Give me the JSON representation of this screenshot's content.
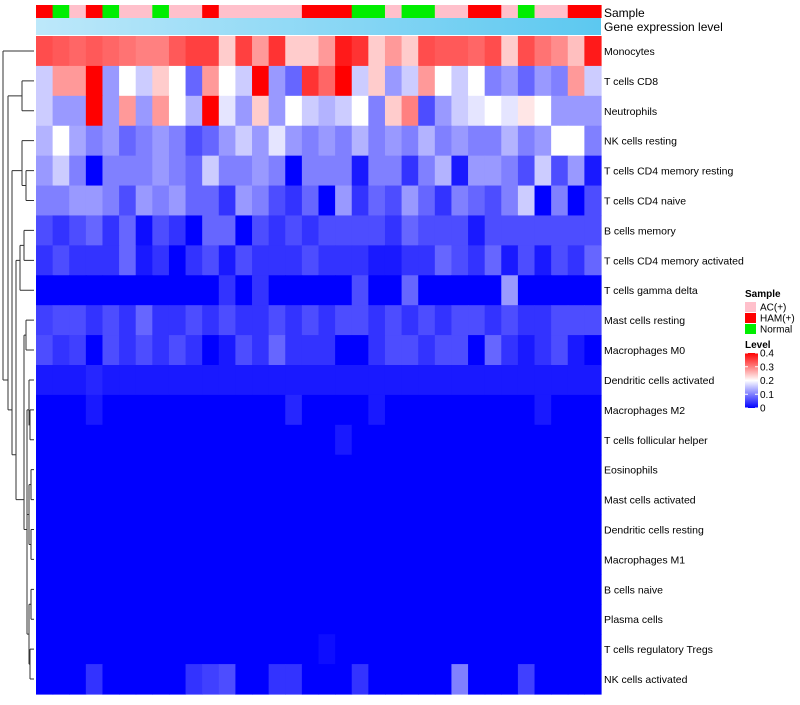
{
  "chart_data": {
    "type": "heatmap",
    "title": "",
    "annotations": {
      "sample_label": "Sample",
      "expression_label": "Gene expression level",
      "sample_groups": [
        "HAM(+)",
        "Normal",
        "AC(+)",
        "HAM(+)",
        "Normal",
        "AC(+)",
        "AC(+)",
        "Normal",
        "AC(+)",
        "AC(+)",
        "HAM(+)",
        "AC(+)",
        "AC(+)",
        "AC(+)",
        "AC(+)",
        "AC(+)",
        "HAM(+)",
        "HAM(+)",
        "HAM(+)",
        "Normal",
        "Normal",
        "AC(+)",
        "Normal",
        "Normal",
        "AC(+)",
        "AC(+)",
        "HAM(+)",
        "HAM(+)",
        "AC(+)",
        "Normal",
        "AC(+)",
        "AC(+)",
        "HAM(+)",
        "HAM(+)"
      ]
    },
    "rows": [
      "Monocytes",
      "T cells CD8",
      "Neutrophils",
      "NK cells resting",
      "T cells CD4 memory resting",
      "T cells CD4 naive",
      "B cells memory",
      "T cells CD4 memory activated",
      "T cells gamma delta",
      "Mast cells resting",
      "Macrophages M0",
      "Dendritic cells activated",
      "Macrophages M2",
      "T cells follicular helper",
      "Eosinophils",
      "Mast cells activated",
      "Dendritic cells resting",
      "Macrophages M1",
      "B cells naive",
      "Plasma cells",
      "T cells regulatory  Tregs",
      "NK cells activated"
    ],
    "values": [
      [
        0.34,
        0.33,
        0.32,
        0.33,
        0.32,
        0.31,
        0.3,
        0.3,
        0.33,
        0.35,
        0.35,
        0.24,
        0.35,
        0.28,
        0.36,
        0.24,
        0.24,
        0.28,
        0.38,
        0.36,
        0.24,
        0.28,
        0.24,
        0.34,
        0.33,
        0.33,
        0.32,
        0.34,
        0.24,
        0.34,
        0.31,
        0.29,
        0.25,
        0.38
      ],
      [
        0.16,
        0.28,
        0.28,
        0.4,
        0.12,
        0.2,
        0.16,
        0.24,
        0.2,
        0.08,
        0.28,
        0.2,
        0.16,
        0.4,
        0.12,
        0.08,
        0.36,
        0.32,
        0.4,
        0.16,
        0.24,
        0.12,
        0.16,
        0.28,
        0.2,
        0.16,
        0.2,
        0.1,
        0.12,
        0.08,
        0.12,
        0.1,
        0.28,
        0.16
      ],
      [
        0.16,
        0.12,
        0.12,
        0.4,
        0.12,
        0.28,
        0.12,
        0.28,
        0.2,
        0.14,
        0.4,
        0.18,
        0.12,
        0.24,
        0.12,
        0.2,
        0.16,
        0.14,
        0.16,
        0.2,
        0.1,
        0.24,
        0.3,
        0.06,
        0.12,
        0.16,
        0.18,
        0.2,
        0.18,
        0.22,
        0.2,
        0.12,
        0.12,
        0.12
      ],
      [
        0.14,
        0.2,
        0.13,
        0.1,
        0.12,
        0.08,
        0.1,
        0.12,
        0.1,
        0.06,
        0.08,
        0.12,
        0.16,
        0.12,
        0.18,
        0.12,
        0.1,
        0.12,
        0.1,
        0.14,
        0.1,
        0.12,
        0.1,
        0.14,
        0.1,
        0.12,
        0.1,
        0.1,
        0.14,
        0.1,
        0.12,
        0.2,
        0.2,
        0.1
      ],
      [
        0.12,
        0.16,
        0.1,
        0.0,
        0.1,
        0.1,
        0.1,
        0.12,
        0.1,
        0.08,
        0.16,
        0.1,
        0.1,
        0.12,
        0.1,
        0.0,
        0.1,
        0.1,
        0.1,
        0.02,
        0.1,
        0.1,
        0.04,
        0.1,
        0.14,
        0.02,
        0.12,
        0.12,
        0.1,
        0.06,
        0.16,
        0.06,
        0.12,
        0.02
      ],
      [
        0.1,
        0.1,
        0.12,
        0.12,
        0.1,
        0.06,
        0.12,
        0.1,
        0.12,
        0.08,
        0.08,
        0.04,
        0.12,
        0.1,
        0.06,
        0.04,
        0.08,
        0.0,
        0.12,
        0.04,
        0.08,
        0.06,
        0.12,
        0.08,
        0.04,
        0.1,
        0.08,
        0.06,
        0.1,
        0.16,
        0.0,
        0.1,
        0.0,
        0.06
      ],
      [
        0.06,
        0.04,
        0.06,
        0.08,
        0.04,
        0.08,
        0.01,
        0.06,
        0.04,
        0.0,
        0.08,
        0.08,
        0.0,
        0.06,
        0.04,
        0.06,
        0.04,
        0.06,
        0.06,
        0.06,
        0.06,
        0.04,
        0.08,
        0.06,
        0.06,
        0.06,
        0.02,
        0.06,
        0.06,
        0.06,
        0.06,
        0.06,
        0.06,
        0.06
      ],
      [
        0.04,
        0.06,
        0.04,
        0.04,
        0.04,
        0.08,
        0.02,
        0.04,
        0.0,
        0.04,
        0.06,
        0.02,
        0.06,
        0.04,
        0.04,
        0.04,
        0.06,
        0.04,
        0.04,
        0.04,
        0.02,
        0.02,
        0.04,
        0.04,
        0.08,
        0.06,
        0.04,
        0.08,
        0.02,
        0.06,
        0.02,
        0.06,
        0.04,
        0.08
      ],
      [
        0.0,
        0.0,
        0.0,
        0.0,
        0.0,
        0.0,
        0.0,
        0.0,
        0.0,
        0.0,
        0.0,
        0.04,
        0.0,
        0.04,
        0.0,
        0.0,
        0.0,
        0.0,
        0.0,
        0.06,
        0.0,
        0.0,
        0.08,
        0.0,
        0.0,
        0.0,
        0.0,
        0.0,
        0.12,
        0.0,
        0.0,
        0.0,
        0.0,
        0.0
      ],
      [
        0.05,
        0.06,
        0.06,
        0.04,
        0.06,
        0.04,
        0.08,
        0.04,
        0.04,
        0.06,
        0.04,
        0.06,
        0.04,
        0.04,
        0.06,
        0.04,
        0.06,
        0.04,
        0.06,
        0.06,
        0.04,
        0.06,
        0.04,
        0.06,
        0.04,
        0.06,
        0.06,
        0.04,
        0.06,
        0.04,
        0.04,
        0.06,
        0.06,
        0.06
      ],
      [
        0.06,
        0.04,
        0.05,
        0.0,
        0.06,
        0.04,
        0.06,
        0.04,
        0.06,
        0.04,
        0.0,
        0.02,
        0.06,
        0.04,
        0.08,
        0.04,
        0.04,
        0.04,
        0.0,
        0.0,
        0.04,
        0.06,
        0.06,
        0.04,
        0.06,
        0.06,
        0.0,
        0.08,
        0.04,
        0.02,
        0.04,
        0.06,
        0.02,
        0.0
      ],
      [
        0.02,
        0.02,
        0.02,
        0.03,
        0.02,
        0.02,
        0.02,
        0.02,
        0.02,
        0.02,
        0.02,
        0.02,
        0.02,
        0.02,
        0.02,
        0.02,
        0.02,
        0.02,
        0.02,
        0.02,
        0.02,
        0.02,
        0.02,
        0.02,
        0.02,
        0.02,
        0.02,
        0.02,
        0.02,
        0.02,
        0.02,
        0.02,
        0.02,
        0.02
      ],
      [
        0.0,
        0.0,
        0.0,
        0.02,
        0.0,
        0.0,
        0.0,
        0.0,
        0.0,
        0.0,
        0.0,
        0.0,
        0.0,
        0.0,
        0.0,
        0.03,
        0.0,
        0.0,
        0.0,
        0.0,
        0.02,
        0.0,
        0.0,
        0.0,
        0.0,
        0.0,
        0.0,
        0.0,
        0.0,
        0.0,
        0.02,
        0.0,
        0.0,
        0.0
      ],
      [
        0.0,
        0.0,
        0.0,
        0.0,
        0.0,
        0.0,
        0.0,
        0.0,
        0.0,
        0.0,
        0.0,
        0.0,
        0.0,
        0.0,
        0.0,
        0.0,
        0.0,
        0.0,
        0.02,
        0.0,
        0.0,
        0.0,
        0.0,
        0.0,
        0.0,
        0.0,
        0.0,
        0.0,
        0.0,
        0.0,
        0.0,
        0.0,
        0.0,
        0.0
      ],
      [
        0,
        0,
        0,
        0,
        0,
        0,
        0,
        0,
        0,
        0,
        0,
        0,
        0,
        0,
        0,
        0,
        0,
        0,
        0,
        0,
        0,
        0,
        0,
        0,
        0,
        0,
        0,
        0,
        0,
        0,
        0,
        0,
        0,
        0
      ],
      [
        0,
        0,
        0,
        0,
        0,
        0,
        0,
        0,
        0,
        0,
        0,
        0,
        0,
        0,
        0,
        0,
        0,
        0,
        0,
        0,
        0,
        0,
        0,
        0,
        0,
        0,
        0,
        0,
        0,
        0,
        0,
        0,
        0,
        0
      ],
      [
        0,
        0,
        0,
        0,
        0,
        0,
        0,
        0,
        0,
        0,
        0,
        0,
        0,
        0,
        0,
        0,
        0,
        0,
        0,
        0,
        0,
        0,
        0,
        0,
        0,
        0,
        0,
        0,
        0,
        0,
        0,
        0,
        0,
        0
      ],
      [
        0,
        0,
        0,
        0,
        0,
        0,
        0,
        0,
        0,
        0,
        0,
        0,
        0,
        0,
        0,
        0,
        0,
        0,
        0,
        0,
        0,
        0,
        0,
        0,
        0,
        0,
        0,
        0,
        0,
        0,
        0,
        0,
        0,
        0
      ],
      [
        0,
        0,
        0,
        0,
        0,
        0,
        0,
        0,
        0,
        0,
        0,
        0,
        0,
        0,
        0,
        0,
        0,
        0,
        0,
        0,
        0,
        0,
        0,
        0,
        0,
        0,
        0,
        0,
        0,
        0,
        0,
        0,
        0,
        0
      ],
      [
        0,
        0,
        0,
        0,
        0,
        0,
        0,
        0,
        0,
        0,
        0,
        0,
        0,
        0,
        0,
        0,
        0,
        0,
        0,
        0,
        0,
        0,
        0,
        0,
        0,
        0,
        0,
        0,
        0,
        0,
        0,
        0,
        0,
        0
      ],
      [
        0,
        0,
        0,
        0,
        0,
        0,
        0,
        0,
        0,
        0,
        0,
        0,
        0,
        0,
        0,
        0,
        0,
        0.01,
        0,
        0,
        0,
        0,
        0,
        0,
        0,
        0,
        0,
        0,
        0,
        0,
        0,
        0,
        0,
        0
      ],
      [
        0,
        0,
        0,
        0.04,
        0,
        0,
        0,
        0,
        0,
        0.04,
        0.05,
        0.06,
        0,
        0,
        0.04,
        0.04,
        0,
        0,
        0,
        0.04,
        0,
        0,
        0,
        0,
        0,
        0.1,
        0,
        0,
        0,
        0.05,
        0,
        0,
        0,
        0
      ]
    ],
    "legend": {
      "sample_title": "Sample",
      "sample_entries": [
        {
          "label": "AC(+)",
          "color": "#FFC0CB"
        },
        {
          "label": "HAM(+)",
          "color": "#FF0000"
        },
        {
          "label": "Normal",
          "color": "#00EE00"
        }
      ],
      "level_title": "Level",
      "level_ticks": [
        "0.4",
        "0.3",
        "0.2",
        "0.1",
        "0"
      ],
      "level_range": [
        0,
        0.4
      ]
    },
    "colors": {
      "low": "#0000FF",
      "mid": "#FFFFFF",
      "high": "#FF0000",
      "expression_bar": "#5CC8F0",
      "expression_bar_light": "#BDE8FA"
    }
  }
}
